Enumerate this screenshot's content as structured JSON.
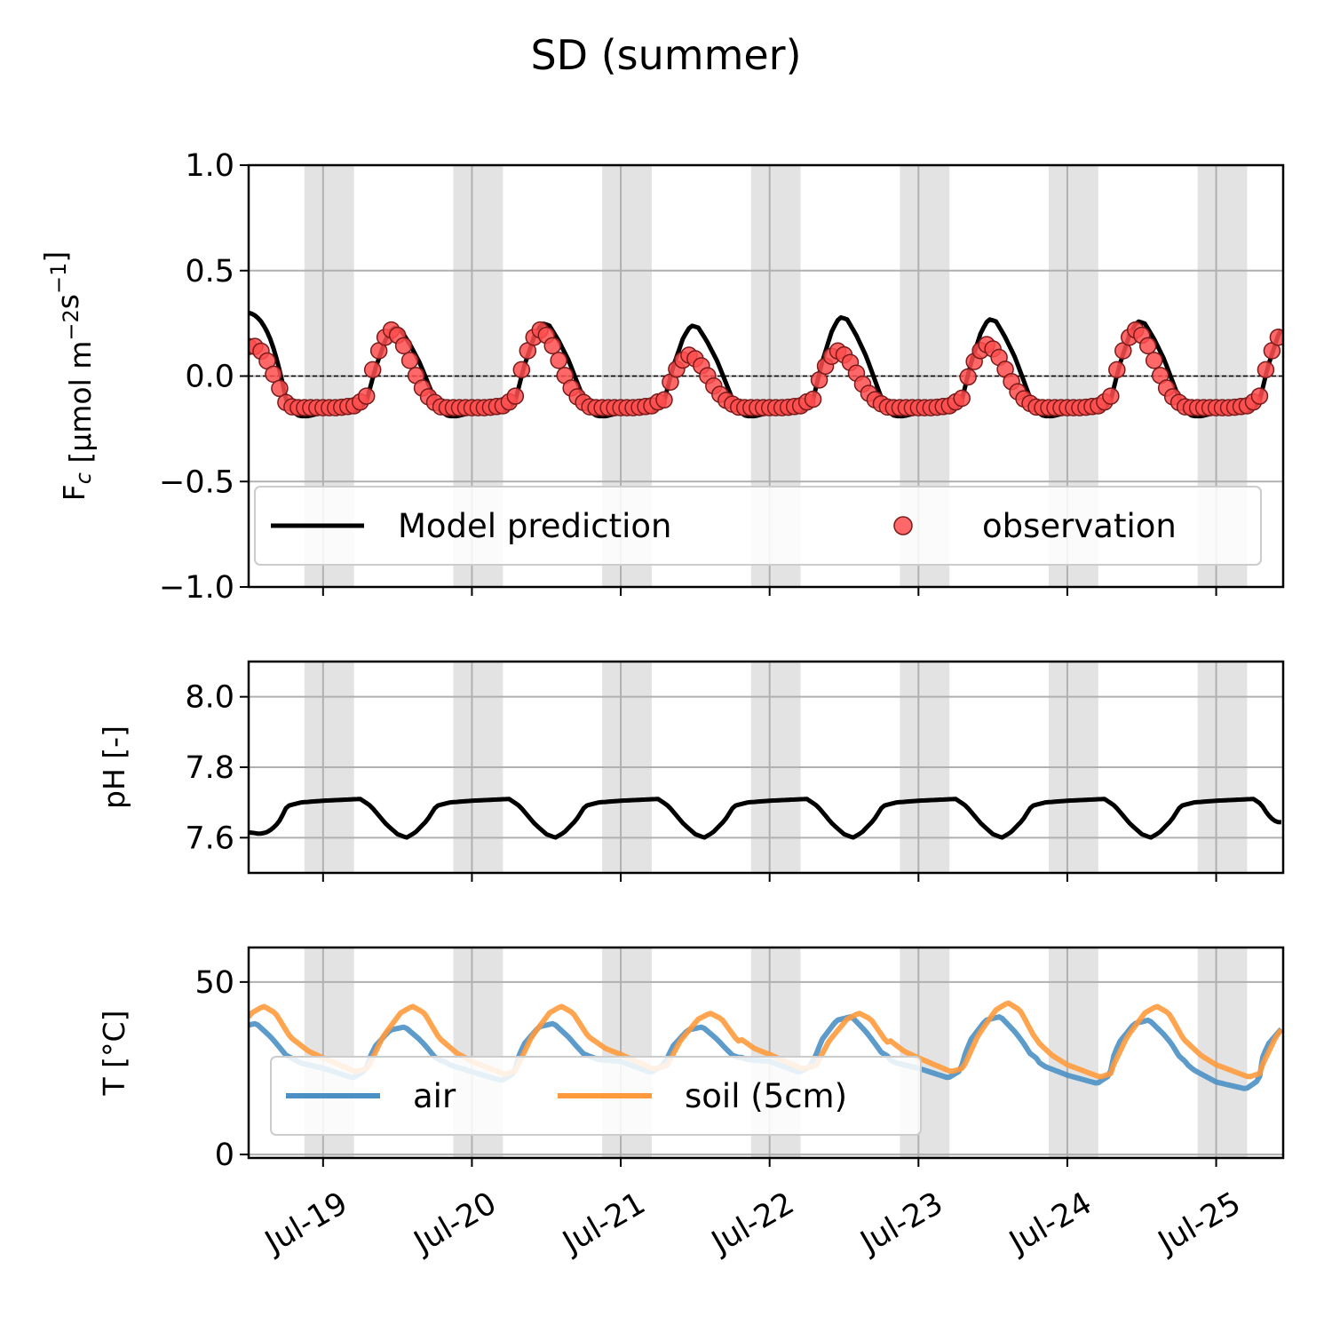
{
  "figure": {
    "title": "SD (summer)"
  },
  "colors": {
    "model": "#000000",
    "obs_fill": "#ff4d4d",
    "obs_edge": "#7a1a1a",
    "air": "#4a90c4",
    "soil": "#ff9a3c",
    "night_band": "#e3e3e3",
    "grid": "#b0b0b0"
  },
  "chart_data": [
    {
      "id": "flux",
      "type": "line",
      "ylabel": "F_c [μmol m^-2 s^-1]",
      "ylim": [
        -1.0,
        1.0
      ],
      "yticks": [
        -1.0,
        -0.5,
        0.0,
        0.5,
        1.0
      ],
      "ytick_labels": [
        "−1.0",
        "−0.5",
        "0.0",
        "0.5",
        "1.0"
      ],
      "xlim": [
        18.5,
        25.45
      ],
      "xticks": [
        19,
        20,
        21,
        22,
        23,
        24,
        25
      ],
      "xtick_labels": [
        "Jul-19",
        "Jul-20",
        "Jul-21",
        "Jul-22",
        "Jul-23",
        "Jul-24",
        "Jul-25"
      ],
      "night_bands": [
        [
          18.875,
          19.208
        ],
        [
          19.875,
          20.208
        ],
        [
          20.875,
          21.208
        ],
        [
          21.875,
          22.208
        ],
        [
          22.875,
          23.208
        ],
        [
          23.875,
          24.208
        ],
        [
          24.875,
          25.208
        ]
      ],
      "grid": true,
      "reference_line_y": 0,
      "legend": {
        "position": "lower center",
        "entries": [
          "Model prediction",
          "observation"
        ]
      },
      "series": [
        {
          "name": "Model prediction",
          "kind": "line",
          "day_profile": [
            [
              0.0,
              -0.17
            ],
            [
              0.04,
              -0.16
            ],
            [
              0.1,
              -0.17
            ],
            [
              0.18,
              -0.17
            ],
            [
              0.24,
              -0.16
            ],
            [
              0.29,
              -0.12
            ],
            [
              0.35,
              0.05
            ],
            [
              0.42,
              0.2
            ],
            [
              0.47,
              0.26
            ],
            [
              0.52,
              0.25
            ],
            [
              0.58,
              0.18
            ],
            [
              0.65,
              0.08
            ],
            [
              0.72,
              -0.05
            ],
            [
              0.78,
              -0.16
            ],
            [
              0.84,
              -0.19
            ],
            [
              0.9,
              -0.19
            ],
            [
              0.96,
              -0.18
            ],
            [
              1.0,
              -0.17
            ]
          ],
          "day_peaks": [
            0.23,
            0.25,
            0.24,
            0.28,
            0.27,
            0.26
          ],
          "start_value": 0.3
        },
        {
          "name": "observation",
          "kind": "scatter",
          "day_profile": [
            [
              0.0,
              -0.15
            ],
            [
              0.1,
              -0.15
            ],
            [
              0.22,
              -0.14
            ],
            [
              0.29,
              -0.1
            ],
            [
              0.34,
              0.05
            ],
            [
              0.4,
              0.17
            ],
            [
              0.46,
              0.22
            ],
            [
              0.52,
              0.18
            ],
            [
              0.58,
              0.08
            ],
            [
              0.65,
              -0.04
            ],
            [
              0.72,
              -0.11
            ],
            [
              0.8,
              -0.15
            ],
            [
              0.88,
              -0.15
            ],
            [
              0.96,
              -0.15
            ],
            [
              1.0,
              -0.15
            ]
          ],
          "day_peaks": [
            0.22,
            0.22,
            0.1,
            0.12,
            0.15,
            0.22
          ],
          "start_value": 0.14
        }
      ]
    },
    {
      "id": "ph",
      "type": "line",
      "ylabel": "pH [-]",
      "ylim": [
        7.5,
        8.1
      ],
      "yticks": [
        7.6,
        7.8,
        8.0
      ],
      "ytick_labels": [
        "7.6",
        "7.8",
        "8.0"
      ],
      "xlim": [
        18.5,
        25.45
      ],
      "xticks": [
        19,
        20,
        21,
        22,
        23,
        24,
        25
      ],
      "grid": true,
      "series": [
        {
          "name": "pH",
          "kind": "line",
          "day_profile": [
            [
              0.0,
              7.705
            ],
            [
              0.25,
              7.71
            ],
            [
              0.32,
              7.69
            ],
            [
              0.42,
              7.64
            ],
            [
              0.5,
              7.61
            ],
            [
              0.56,
              7.6
            ],
            [
              0.62,
              7.615
            ],
            [
              0.7,
              7.65
            ],
            [
              0.76,
              7.69
            ],
            [
              0.85,
              7.7
            ],
            [
              1.0,
              7.705
            ]
          ],
          "start_value": 7.615,
          "end_value": 7.645
        }
      ]
    },
    {
      "id": "temperature",
      "type": "line",
      "ylabel": "T [°C]",
      "ylim": [
        -1,
        60
      ],
      "yticks": [
        0,
        50
      ],
      "ytick_labels": [
        "0",
        "50"
      ],
      "xlim": [
        18.5,
        25.45
      ],
      "xticks": [
        19,
        20,
        21,
        22,
        23,
        24,
        25
      ],
      "xtick_labels": [
        "Jul-19",
        "Jul-20",
        "Jul-21",
        "Jul-22",
        "Jul-23",
        "Jul-24",
        "Jul-25"
      ],
      "grid": true,
      "legend": {
        "position": "lower left",
        "entries": [
          "air",
          "soil (5cm)"
        ]
      },
      "series": [
        {
          "name": "air",
          "kind": "line",
          "day_profile": [
            [
              0.0,
              26
            ],
            [
              0.2,
              23
            ],
            [
              0.28,
              25
            ],
            [
              0.35,
              32
            ],
            [
              0.45,
              37
            ],
            [
              0.55,
              38
            ],
            [
              0.65,
              34
            ],
            [
              0.75,
              29
            ],
            [
              0.85,
              27
            ],
            [
              1.0,
              26
            ]
          ],
          "day_mins": [
            22,
            21,
            24,
            24,
            22,
            20,
            18
          ],
          "day_peaks": [
            37,
            38,
            37,
            40,
            40,
            39
          ]
        },
        {
          "name": "soil (5cm)",
          "kind": "line",
          "day_profile": [
            [
              0.0,
              28
            ],
            [
              0.22,
              24
            ],
            [
              0.3,
              25
            ],
            [
              0.4,
              34
            ],
            [
              0.52,
              41
            ],
            [
              0.6,
              43
            ],
            [
              0.68,
              41
            ],
            [
              0.78,
              34
            ],
            [
              0.9,
              30
            ],
            [
              1.0,
              28
            ]
          ],
          "day_mins": [
            24,
            23,
            25,
            25,
            24,
            22,
            22
          ],
          "day_peaks": [
            43,
            43,
            41,
            41,
            44,
            43
          ]
        }
      ]
    }
  ]
}
